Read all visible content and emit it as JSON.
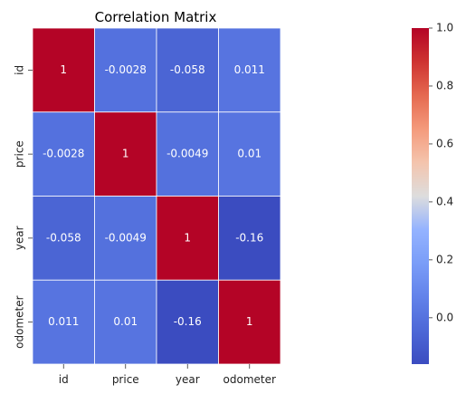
{
  "chart_data": {
    "type": "heatmap",
    "title": "Correlation Matrix",
    "x_labels": [
      "id",
      "price",
      "year",
      "odometer"
    ],
    "y_labels": [
      "id",
      "price",
      "year",
      "odometer"
    ],
    "values": [
      [
        1,
        -0.0028,
        -0.058,
        0.011
      ],
      [
        -0.0028,
        1,
        -0.0049,
        0.01
      ],
      [
        -0.058,
        -0.0049,
        1,
        -0.16
      ],
      [
        0.011,
        0.01,
        -0.16,
        1
      ]
    ],
    "annotations": [
      [
        "1",
        "-0.0028",
        "-0.058",
        "0.011"
      ],
      [
        "-0.0028",
        "1",
        "-0.0049",
        "0.01"
      ],
      [
        "-0.058",
        "-0.0049",
        "1",
        "-0.16"
      ],
      [
        "0.011",
        "0.01",
        "-0.16",
        "1"
      ]
    ],
    "colormap": "coolwarm",
    "colorbar": {
      "min": -0.16,
      "max": 1.0,
      "ticks": [
        0.0,
        0.2,
        0.4,
        0.6,
        0.8,
        1.0
      ],
      "tick_labels": [
        "0.0",
        "0.2",
        "0.4",
        "0.6",
        "0.8",
        "1.0"
      ]
    },
    "colors": {
      "cold": "#3b4cc0",
      "neutral": "#dddddd",
      "hot": "#b40426",
      "grid": "#ffffff"
    },
    "grid": false,
    "legend_placement": "right"
  }
}
